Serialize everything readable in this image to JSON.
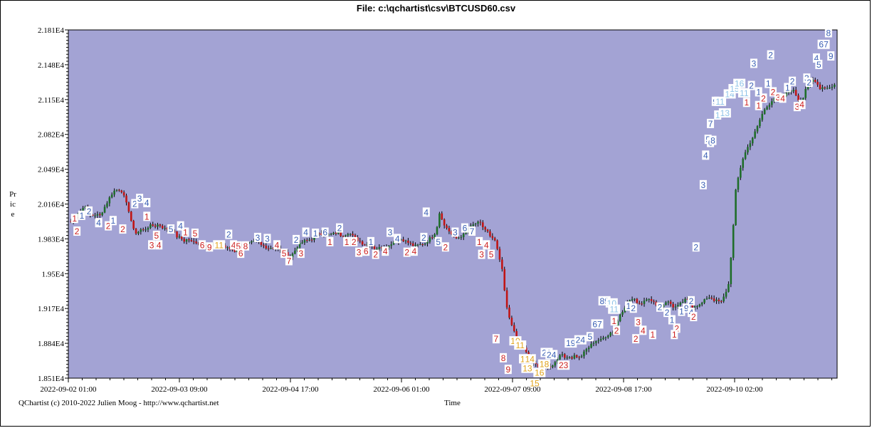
{
  "window": {
    "title": "File: c:\\qchartist\\csv\\BTCUSD60.csv",
    "credit": "QChartist (c) 2010-2022 Julien Moog - http://www.qchartist.net"
  },
  "colors": {
    "plot_background": "#a3a3d4",
    "bull_candle": "#1f6e2a",
    "bear_candle": "#c01515",
    "wick": "#000000",
    "label_blue": "#3a5fb5",
    "label_red": "#cc1f1f",
    "label_orange": "#e0a21a",
    "label_lightblue": "#8fc3e8"
  },
  "chart_data": {
    "type": "candlestick",
    "title": "File: c:\\qchartist\\csv\\BTCUSD60.csv",
    "xlabel": "Time",
    "ylabel": "Price",
    "ylim": [
      18510,
      21810
    ],
    "y_ticks": [
      "2.181E4",
      "2.148E4",
      "2.115E4",
      "2.082E4",
      "2.049E4",
      "2.016E4",
      "1.983E4",
      "1.95E4",
      "1.917E4",
      "1.884E4",
      "1.851E4"
    ],
    "x_ticks": [
      "2022-09-02 01:00",
      "2022-09-03 09:00",
      "2022-09-04 17:00",
      "2022-09-06 01:00",
      "2022-09-07 09:00",
      "2022-09-08 17:00",
      "2022-09-10 02:00"
    ],
    "grid": false,
    "bar_count": 210,
    "series": [
      {
        "values": [
          19990,
          20030,
          20080,
          20110,
          20150,
          20060,
          20050,
          20060,
          20050,
          20120,
          20180,
          20250,
          20290,
          20300,
          20280,
          20180,
          20080,
          19920,
          19880,
          19920,
          19910,
          19940,
          19960,
          19950,
          19970,
          19940,
          19920,
          19930,
          19910,
          19850,
          19840,
          19810,
          19830,
          19800,
          19800,
          19790,
          19780,
          19760,
          19770,
          19780,
          19770,
          19790,
          19750,
          19740,
          19730,
          19710,
          19760,
          19740,
          19780,
          19790,
          19800,
          19810,
          19770,
          19760,
          19740,
          19750,
          19740,
          19730,
          19700,
          19690,
          19660,
          19700,
          19760,
          19790,
          19810,
          19820,
          19830,
          19870,
          19890,
          19870,
          19860,
          19870,
          19880,
          19890,
          19860,
          19870,
          19890,
          19860,
          19830,
          19810,
          19780,
          19780,
          19780,
          19740,
          19740,
          19750,
          19760,
          19760,
          19800,
          19810,
          19830,
          19820,
          19800,
          19780,
          19760,
          19770,
          19780,
          19790,
          19830,
          19850,
          19910,
          20100,
          19960,
          19930,
          19880,
          19830,
          19840,
          19860,
          19880,
          19930,
          19960,
          19980,
          19980,
          19930,
          19900,
          19830,
          19820,
          19680,
          19540,
          19250,
          19070,
          18980,
          18890,
          18790,
          18800,
          18730,
          18670,
          18660,
          18610,
          18600,
          18610,
          18620,
          18640,
          18680,
          18750,
          18700,
          18720,
          18700,
          18730,
          18700,
          18730,
          18780,
          18810,
          18850,
          18870,
          18870,
          18900,
          18920,
          18950,
          18950,
          19100,
          19150,
          19210,
          19250,
          19260,
          19230,
          19210,
          19250,
          19280,
          19230,
          19220,
          19180,
          19200,
          19240,
          19220,
          19180,
          19190,
          19220,
          19250,
          19250,
          19190,
          19200,
          19200,
          19230,
          19270,
          19280,
          19250,
          19240,
          19230,
          19300,
          19400,
          19800,
          20300,
          20470,
          20600,
          20680,
          20750,
          20820,
          20900,
          21000,
          21060,
          21100,
          21150,
          21180,
          21150,
          21180,
          21210,
          21240,
          21230,
          21150,
          21120,
          21250,
          21290,
          21330,
          21310,
          21260,
          21270,
          21260,
          21270,
          21290
        ]
      }
    ],
    "annotations": [
      {
        "text": "1",
        "color": "label_red",
        "t": 2,
        "p": 20020
      },
      {
        "text": "2",
        "color": "label_red",
        "t": 3,
        "p": 19900
      },
      {
        "text": "1",
        "color": "label_blue",
        "t": 5,
        "p": 20050
      },
      {
        "text": "2",
        "color": "label_blue",
        "t": 8,
        "p": 20090
      },
      {
        "text": "4",
        "color": "label_blue",
        "t": 12,
        "p": 19980
      },
      {
        "text": "2",
        "color": "label_red",
        "t": 16,
        "p": 19950
      },
      {
        "text": "1",
        "color": "label_blue",
        "t": 18,
        "p": 20000
      },
      {
        "text": "2",
        "color": "label_red",
        "t": 22,
        "p": 19920
      },
      {
        "text": "2",
        "color": "label_blue",
        "t": 27,
        "p": 20160
      },
      {
        "text": "3",
        "color": "label_blue",
        "t": 29,
        "p": 20210
      },
      {
        "text": "4",
        "color": "label_blue",
        "t": 32,
        "p": 20170
      },
      {
        "text": "1",
        "color": "label_red",
        "t": 32,
        "p": 20040
      },
      {
        "text": "5",
        "color": "label_red",
        "t": 36,
        "p": 19860
      },
      {
        "text": "3",
        "color": "label_red",
        "t": 34,
        "p": 19770
      },
      {
        "text": "4",
        "color": "label_red",
        "t": 37,
        "p": 19770
      },
      {
        "text": "5",
        "color": "label_blue",
        "t": 42,
        "p": 19920
      },
      {
        "text": "4",
        "color": "label_blue",
        "t": 46,
        "p": 19950
      },
      {
        "text": "1",
        "color": "label_red",
        "t": 48,
        "p": 19890
      },
      {
        "text": "5",
        "color": "label_red",
        "t": 52,
        "p": 19880
      },
      {
        "text": "6",
        "color": "label_red",
        "t": 55,
        "p": 19770
      },
      {
        "text": "9",
        "color": "label_red",
        "t": 58,
        "p": 19750
      },
      {
        "text": "11",
        "color": "label_orange",
        "t": 62,
        "p": 19770
      },
      {
        "text": "2",
        "color": "label_blue",
        "t": 66,
        "p": 19870
      },
      {
        "text": "4",
        "color": "label_red",
        "t": 68,
        "p": 19770
      },
      {
        "text": "5",
        "color": "label_red",
        "t": 70,
        "p": 19760
      },
      {
        "text": "8",
        "color": "label_red",
        "t": 73,
        "p": 19760
      },
      {
        "text": "6",
        "color": "label_red",
        "t": 71,
        "p": 19690
      },
      {
        "text": "3",
        "color": "label_blue",
        "t": 78,
        "p": 19840
      },
      {
        "text": "3",
        "color": "label_blue",
        "t": 82,
        "p": 19830
      },
      {
        "text": "4",
        "color": "label_red",
        "t": 86,
        "p": 19770
      },
      {
        "text": "5",
        "color": "label_red",
        "t": 89,
        "p": 19690
      },
      {
        "text": "7",
        "color": "label_red",
        "t": 91,
        "p": 19620
      },
      {
        "text": "2",
        "color": "label_blue",
        "t": 94,
        "p": 19820
      },
      {
        "text": "3",
        "color": "label_red",
        "t": 96,
        "p": 19690
      },
      {
        "text": "4",
        "color": "label_blue",
        "t": 98,
        "p": 19890
      },
      {
        "text": "1",
        "color": "label_blue",
        "t": 102,
        "p": 19880
      },
      {
        "text": "6",
        "color": "label_blue",
        "t": 106,
        "p": 19890
      },
      {
        "text": "1",
        "color": "label_red",
        "t": 108,
        "p": 19800
      },
      {
        "text": "2",
        "color": "label_blue",
        "t": 112,
        "p": 19930
      },
      {
        "text": "1",
        "color": "label_red",
        "t": 115,
        "p": 19800
      },
      {
        "text": "2",
        "color": "label_red",
        "t": 118,
        "p": 19800
      },
      {
        "text": "3",
        "color": "label_red",
        "t": 120,
        "p": 19700
      },
      {
        "text": "6",
        "color": "label_red",
        "t": 123,
        "p": 19710
      },
      {
        "text": "1",
        "color": "label_blue",
        "t": 125,
        "p": 19800
      },
      {
        "text": "2",
        "color": "label_red",
        "t": 127,
        "p": 19680
      },
      {
        "text": "4",
        "color": "label_red",
        "t": 131,
        "p": 19710
      },
      {
        "text": "3",
        "color": "label_blue",
        "t": 133,
        "p": 19890
      },
      {
        "text": "4",
        "color": "label_blue",
        "t": 136,
        "p": 19830
      },
      {
        "text": "2",
        "color": "label_red",
        "t": 140,
        "p": 19700
      },
      {
        "text": "4",
        "color": "label_red",
        "t": 143,
        "p": 19710
      },
      {
        "text": "2",
        "color": "label_blue",
        "t": 147,
        "p": 19840
      },
      {
        "text": "4",
        "color": "label_blue",
        "t": 148,
        "p": 20080
      },
      {
        "text": "5",
        "color": "label_blue",
        "t": 153,
        "p": 19800
      },
      {
        "text": "2",
        "color": "label_red",
        "t": 156,
        "p": 19750
      },
      {
        "text": "3",
        "color": "label_blue",
        "t": 160,
        "p": 19890
      },
      {
        "text": "6",
        "color": "label_blue",
        "t": 164,
        "p": 19930
      },
      {
        "text": "7",
        "color": "label_blue",
        "t": 167,
        "p": 19900
      },
      {
        "text": "1",
        "color": "label_red",
        "t": 170,
        "p": 19800
      },
      {
        "text": "4",
        "color": "label_red",
        "t": 173,
        "p": 19770
      },
      {
        "text": "5",
        "color": "label_red",
        "t": 175,
        "p": 19680
      },
      {
        "text": "3",
        "color": "label_red",
        "t": 171,
        "p": 19680
      },
      {
        "text": "7",
        "color": "label_red",
        "t": 177,
        "p": 18880
      },
      {
        "text": "8",
        "color": "label_red",
        "t": 180,
        "p": 18700
      },
      {
        "text": "9",
        "color": "label_red",
        "t": 182,
        "p": 18590
      },
      {
        "text": "10",
        "color": "label_orange",
        "t": 185,
        "p": 18860
      },
      {
        "text": "11",
        "color": "label_orange",
        "t": 187,
        "p": 18820
      },
      {
        "text": "13",
        "color": "label_orange",
        "t": 189,
        "p": 18690
      },
      {
        "text": "14",
        "color": "label_orange",
        "t": 191,
        "p": 18690
      },
      {
        "text": "13",
        "color": "label_orange",
        "t": 190,
        "p": 18600
      },
      {
        "text": "15",
        "color": "label_orange",
        "t": 193,
        "p": 18460
      },
      {
        "text": "16",
        "color": "label_orange",
        "t": 195,
        "p": 18560
      },
      {
        "text": "18",
        "color": "label_orange",
        "t": 197,
        "p": 18640
      },
      {
        "text": "23",
        "color": "label_blue",
        "t": 198,
        "p": 18750
      },
      {
        "text": "24",
        "color": "label_blue",
        "t": 200,
        "p": 18730
      },
      {
        "text": "23",
        "color": "label_red",
        "t": 205,
        "p": 18630
      },
      {
        "text": "19",
        "color": "label_blue",
        "t": 208,
        "p": 18840
      },
      {
        "text": "24",
        "color": "label_blue",
        "t": 212,
        "p": 18870
      },
      {
        "text": "5",
        "color": "label_blue",
        "t": 216,
        "p": 18900
      },
      {
        "text": "67",
        "color": "label_blue",
        "t": 219,
        "p": 19020
      },
      {
        "text": "89",
        "color": "label_blue",
        "t": 222,
        "p": 19240
      },
      {
        "text": "10",
        "color": "label_lightblue",
        "t": 225,
        "p": 19220
      },
      {
        "text": "11",
        "color": "label_lightblue",
        "t": 226,
        "p": 19160
      },
      {
        "text": "1",
        "color": "label_red",
        "t": 226,
        "p": 19050
      },
      {
        "text": "2",
        "color": "label_red",
        "t": 227,
        "p": 18960
      },
      {
        "text": "1",
        "color": "label_blue",
        "t": 232,
        "p": 19190
      },
      {
        "text": "2",
        "color": "label_blue",
        "t": 234,
        "p": 19170
      },
      {
        "text": "3",
        "color": "label_red",
        "t": 236,
        "p": 19040
      },
      {
        "text": "4",
        "color": "label_red",
        "t": 238,
        "p": 18960
      },
      {
        "text": "2",
        "color": "label_red",
        "t": 235,
        "p": 18880
      },
      {
        "text": "1",
        "color": "label_red",
        "t": 242,
        "p": 18920
      },
      {
        "text": "2",
        "color": "label_blue",
        "t": 245,
        "p": 19180
      },
      {
        "text": "2",
        "color": "label_blue",
        "t": 248,
        "p": 19130
      },
      {
        "text": "1",
        "color": "label_blue",
        "t": 250,
        "p": 19060
      },
      {
        "text": "2",
        "color": "label_red",
        "t": 252,
        "p": 18980
      },
      {
        "text": "1",
        "color": "label_red",
        "t": 251,
        "p": 18920
      },
      {
        "text": "1",
        "color": "label_blue",
        "t": 254,
        "p": 19140
      },
      {
        "text": "9",
        "color": "label_blue",
        "t": 256,
        "p": 19170
      },
      {
        "text": "4",
        "color": "label_blue",
        "t": 258,
        "p": 19130
      },
      {
        "text": "2",
        "color": "label_red",
        "t": 259,
        "p": 19090
      },
      {
        "text": "2",
        "color": "label_blue",
        "t": 258,
        "p": 19240
      },
      {
        "text": "2",
        "color": "label_blue",
        "t": 260,
        "p": 19750
      },
      {
        "text": "3",
        "color": "label_blue",
        "t": 263,
        "p": 20340
      },
      {
        "text": "4",
        "color": "label_blue",
        "t": 264,
        "p": 20620
      },
      {
        "text": "5",
        "color": "label_blue",
        "t": 265,
        "p": 20770
      },
      {
        "text": "6",
        "color": "label_blue",
        "t": 266,
        "p": 20740
      },
      {
        "text": "8",
        "color": "label_blue",
        "t": 267,
        "p": 20760
      },
      {
        "text": "7",
        "color": "label_blue",
        "t": 266,
        "p": 20920
      },
      {
        "text": "9",
        "color": "label_blue",
        "t": 268,
        "p": 21130
      },
      {
        "text": "1",
        "color": "label_lightblue",
        "t": 269,
        "p": 21000
      },
      {
        "text": "13",
        "color": "label_lightblue",
        "t": 272,
        "p": 21020
      },
      {
        "text": "11",
        "color": "label_lightblue",
        "t": 270,
        "p": 21130
      },
      {
        "text": "14",
        "color": "label_lightblue",
        "t": 274,
        "p": 21200
      },
      {
        "text": "15",
        "color": "label_lightblue",
        "t": 276,
        "p": 21250
      },
      {
        "text": "16",
        "color": "label_lightblue",
        "t": 278,
        "p": 21300
      },
      {
        "text": "11",
        "color": "label_lightblue",
        "t": 280,
        "p": 21210
      },
      {
        "text": "1",
        "color": "label_red",
        "t": 281,
        "p": 21120
      },
      {
        "text": "2",
        "color": "label_blue",
        "t": 283,
        "p": 21280
      },
      {
        "text": "3",
        "color": "label_blue",
        "t": 284,
        "p": 21490
      },
      {
        "text": "1",
        "color": "label_blue",
        "t": 286,
        "p": 21220
      },
      {
        "text": "1",
        "color": "label_red",
        "t": 286,
        "p": 21090
      },
      {
        "text": "2",
        "color": "label_red",
        "t": 288,
        "p": 21160
      },
      {
        "text": "1",
        "color": "label_blue",
        "t": 290,
        "p": 21300
      },
      {
        "text": "2",
        "color": "label_blue",
        "t": 291,
        "p": 21570
      },
      {
        "text": "2",
        "color": "label_red",
        "t": 292,
        "p": 21220
      },
      {
        "text": "3",
        "color": "label_red",
        "t": 294,
        "p": 21170
      },
      {
        "text": "4",
        "color": "label_red",
        "t": 296,
        "p": 21160
      },
      {
        "text": "1",
        "color": "label_blue",
        "t": 298,
        "p": 21260
      },
      {
        "text": "2",
        "color": "label_blue",
        "t": 300,
        "p": 21320
      },
      {
        "text": "3",
        "color": "label_red",
        "t": 302,
        "p": 21080
      },
      {
        "text": "4",
        "color": "label_red",
        "t": 304,
        "p": 21100
      },
      {
        "text": "3",
        "color": "label_blue",
        "t": 306,
        "p": 21350
      },
      {
        "text": "2",
        "color": "label_blue",
        "t": 307,
        "p": 21310
      },
      {
        "text": "4",
        "color": "label_blue",
        "t": 310,
        "p": 21540
      },
      {
        "text": "5",
        "color": "label_blue",
        "t": 311,
        "p": 21480
      },
      {
        "text": "67",
        "color": "label_blue",
        "t": 313,
        "p": 21670
      },
      {
        "text": "8",
        "color": "label_blue",
        "t": 315,
        "p": 21780
      },
      {
        "text": "9",
        "color": "label_blue",
        "t": 316,
        "p": 21560
      }
    ]
  }
}
